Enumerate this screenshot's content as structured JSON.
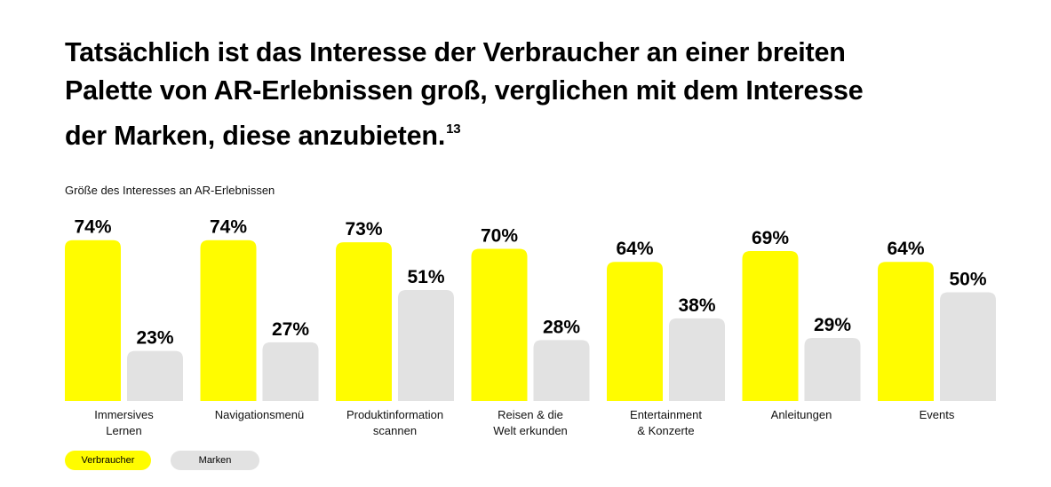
{
  "title": "Tatsächlich ist das Interesse der Verbraucher an einer breiten Palette von AR-Erlebnissen groß, verglichen mit dem Interesse der Marken, diese anzubieten.",
  "footnote": "13",
  "chart_data": {
    "type": "bar",
    "title": "Tatsächlich ist das Interesse der Verbraucher an einer breiten Palette von AR-Erlebnissen groß, verglichen mit dem Interesse der Marken, diese anzubieten.",
    "subtitle": "Größe des Interesses an AR-Erlebnissen",
    "categories": [
      [
        "Immersives",
        "Lernen"
      ],
      [
        "Navigationsmenü"
      ],
      [
        "Produktinformation",
        "scannen"
      ],
      [
        "Reisen & die",
        "Welt erkunden"
      ],
      [
        "Entertainment",
        "& Konzerte"
      ],
      [
        "Anleitungen"
      ],
      [
        "Events"
      ]
    ],
    "series": [
      {
        "name": "Verbraucher",
        "values": [
          74,
          74,
          73,
          70,
          64,
          69,
          64
        ],
        "color": "#fffc00"
      },
      {
        "name": "Marken",
        "values": [
          23,
          27,
          51,
          28,
          38,
          29,
          50
        ],
        "color": "#e2e2e2"
      }
    ],
    "value_suffix": "%",
    "ylim": [
      0,
      100
    ],
    "grid": false,
    "legend": "bottom-left"
  }
}
